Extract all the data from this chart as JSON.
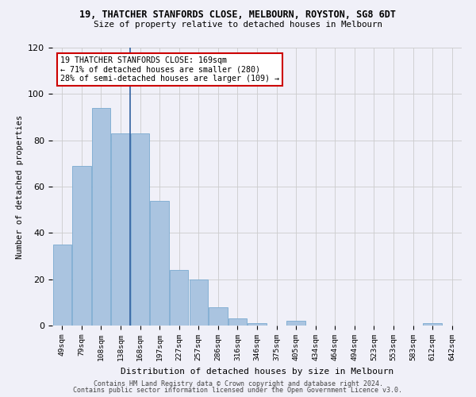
{
  "title1": "19, THATCHER STANFORDS CLOSE, MELBOURN, ROYSTON, SG8 6DT",
  "title2": "Size of property relative to detached houses in Melbourn",
  "xlabel": "Distribution of detached houses by size in Melbourn",
  "ylabel": "Number of detached properties",
  "categories": [
    "49sqm",
    "79sqm",
    "108sqm",
    "138sqm",
    "168sqm",
    "197sqm",
    "227sqm",
    "257sqm",
    "286sqm",
    "316sqm",
    "346sqm",
    "375sqm",
    "405sqm",
    "434sqm",
    "464sqm",
    "494sqm",
    "523sqm",
    "553sqm",
    "583sqm",
    "612sqm",
    "642sqm"
  ],
  "values": [
    35,
    69,
    94,
    83,
    83,
    54,
    24,
    20,
    8,
    3,
    1,
    0,
    2,
    0,
    0,
    0,
    0,
    0,
    0,
    1,
    0
  ],
  "bar_color": "#aac4e0",
  "bar_edge_color": "#7aaad0",
  "vline_index": 4,
  "vline_color": "#3060a0",
  "annotation_text": "19 THATCHER STANFORDS CLOSE: 169sqm\n← 71% of detached houses are smaller (280)\n28% of semi-detached houses are larger (109) →",
  "annotation_box_color": "#ffffff",
  "annotation_edge_color": "#cc0000",
  "ylim": [
    0,
    120
  ],
  "yticks": [
    0,
    20,
    40,
    60,
    80,
    100,
    120
  ],
  "footer1": "Contains HM Land Registry data © Crown copyright and database right 2024.",
  "footer2": "Contains public sector information licensed under the Open Government Licence v3.0.",
  "background_color": "#f0f0f8"
}
